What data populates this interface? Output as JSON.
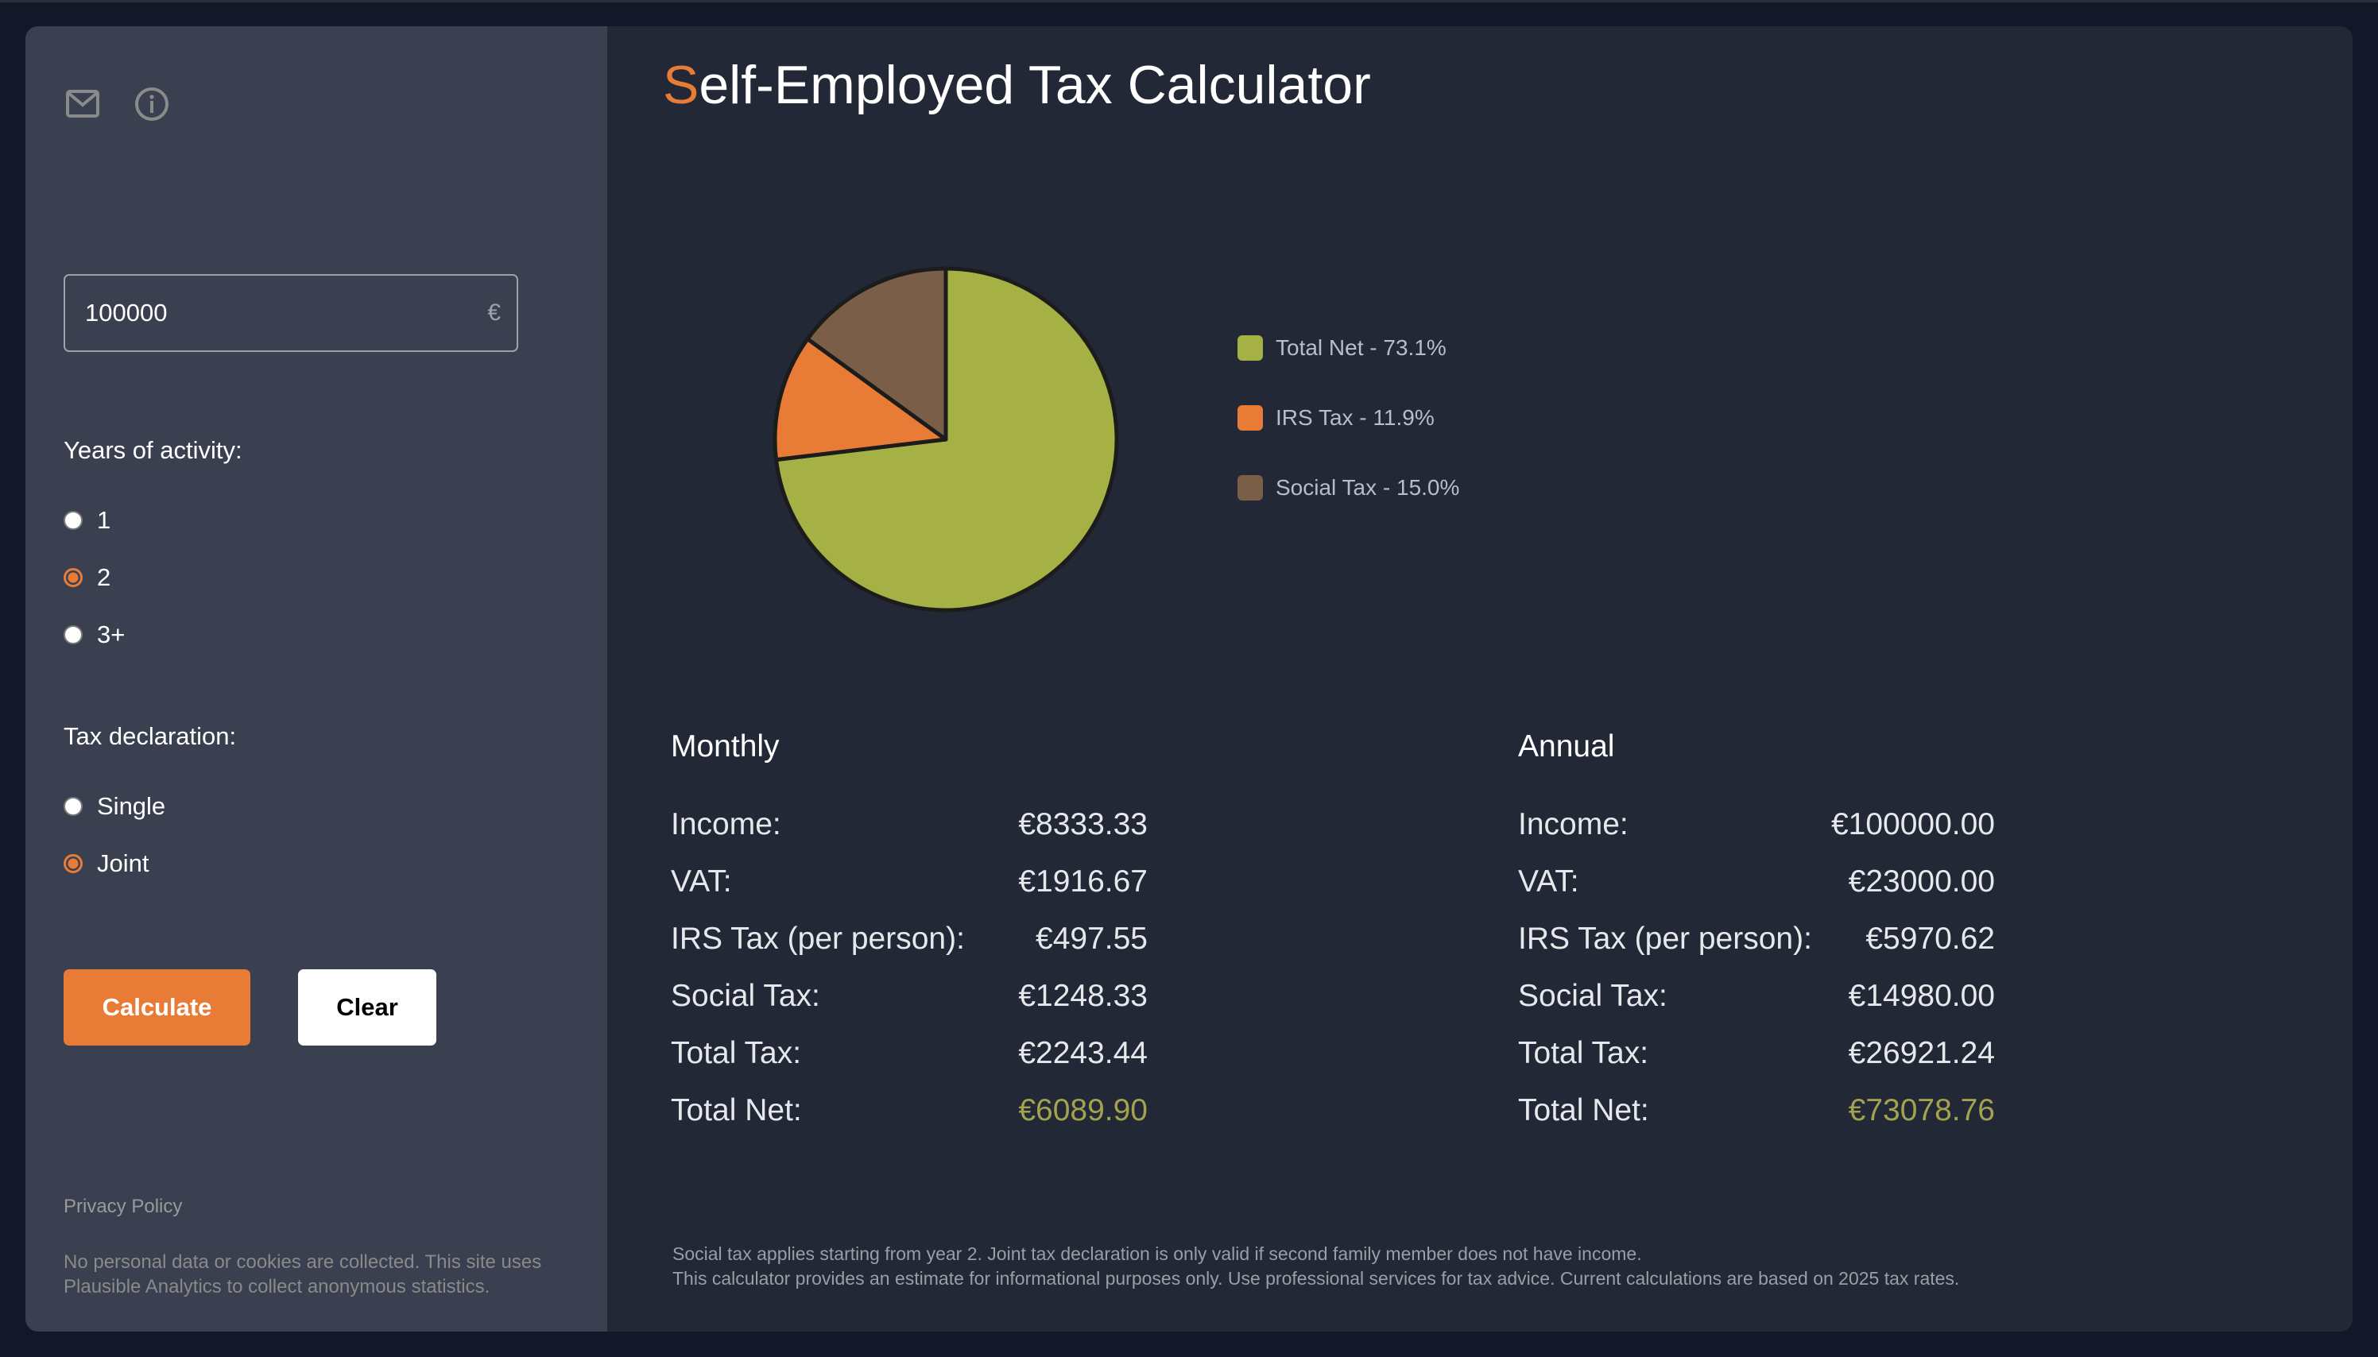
{
  "sidebar": {
    "icons": {
      "mail": "mail-icon",
      "info": "info-icon"
    },
    "amount": {
      "value": "100000",
      "currency_symbol": "€"
    },
    "years": {
      "label": "Years of activity:",
      "options": [
        {
          "label": "1",
          "checked": false
        },
        {
          "label": "2",
          "checked": true
        },
        {
          "label": "3+",
          "checked": false
        }
      ]
    },
    "declaration": {
      "label": "Tax declaration:",
      "options": [
        {
          "label": "Single",
          "checked": false
        },
        {
          "label": "Joint",
          "checked": true
        }
      ]
    },
    "buttons": {
      "calculate": "Calculate",
      "clear": "Clear"
    },
    "privacy_link": "Privacy Policy",
    "privacy_note": "No personal data or cookies are collected. This site uses Plausible Analytics to collect anonymous statistics."
  },
  "main": {
    "title_accent": "S",
    "title_rest": "elf-Employed Tax Calculator",
    "monthly": {
      "heading": "Monthly",
      "rows": [
        {
          "label": "Income:",
          "value": "€8333.33"
        },
        {
          "label": "VAT:",
          "value": "€1916.67"
        },
        {
          "label": "IRS Tax (per person):",
          "value": "€497.55"
        },
        {
          "label": "Social Tax:",
          "value": "€1248.33"
        },
        {
          "label": "Total Tax:",
          "value": "€2243.44"
        },
        {
          "label": "Total Net:",
          "value": "€6089.90"
        }
      ]
    },
    "annual": {
      "heading": "Annual",
      "rows": [
        {
          "label": "Income:",
          "value": "€100000.00"
        },
        {
          "label": "VAT:",
          "value": "€23000.00"
        },
        {
          "label": "IRS Tax (per person):",
          "value": "€5970.62"
        },
        {
          "label": "Social Tax:",
          "value": "€14980.00"
        },
        {
          "label": "Total Tax:",
          "value": "€26921.24"
        },
        {
          "label": "Total Net:",
          "value": "€73078.76"
        }
      ]
    },
    "footnotes": [
      "Social tax applies starting from year 2. Joint tax declaration is only valid if second family member does not have income.",
      "This calculator provides an estimate for informational purposes only. Use professional services for tax advice. Current calculations are based on 2025 tax rates."
    ]
  },
  "colors": {
    "accent": "#e87c37",
    "net": "#a5b145",
    "irs": "#e87c37",
    "social": "#7a5e48",
    "net_text": "#a3a34f"
  },
  "chart_data": {
    "type": "pie",
    "title": "",
    "start": "top",
    "direction": "clockwise",
    "legend_position": "right",
    "slices": [
      {
        "label": "Total Net",
        "value": 73.1,
        "legend": "Total Net - 73.1%",
        "color": "#a5b145"
      },
      {
        "label": "IRS Tax",
        "value": 11.9,
        "legend": "IRS Tax - 11.9%",
        "color": "#e87c37"
      },
      {
        "label": "Social Tax",
        "value": 15.0,
        "legend": "Social Tax - 15.0%",
        "color": "#7a5e48"
      }
    ]
  }
}
